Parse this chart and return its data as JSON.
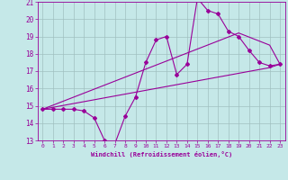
{
  "title": "",
  "xlabel": "Windchill (Refroidissement éolien,°C)",
  "ylabel": "",
  "background_color": "#c5e8e8",
  "grid_color": "#a0c0c0",
  "line_color": "#990099",
  "xlim": [
    -0.5,
    23.5
  ],
  "ylim": [
    13,
    21
  ],
  "yticks": [
    13,
    14,
    15,
    16,
    17,
    18,
    19,
    20,
    21
  ],
  "xticks": [
    0,
    1,
    2,
    3,
    4,
    5,
    6,
    7,
    8,
    9,
    10,
    11,
    12,
    13,
    14,
    15,
    16,
    17,
    18,
    19,
    20,
    21,
    22,
    23
  ],
  "line1_x": [
    0,
    1,
    2,
    3,
    4,
    5,
    6,
    7,
    8,
    9,
    10,
    11,
    12,
    13,
    14,
    15,
    16,
    17,
    18,
    19,
    20,
    21,
    22,
    23
  ],
  "line1_y": [
    14.8,
    14.8,
    14.8,
    14.8,
    14.7,
    14.3,
    13.0,
    12.8,
    14.4,
    15.5,
    17.5,
    18.8,
    19.0,
    16.8,
    17.4,
    21.2,
    20.5,
    20.3,
    19.3,
    19.0,
    18.2,
    17.5,
    17.3,
    17.4
  ],
  "line2_x": [
    0,
    22,
    23
  ],
  "line2_y": [
    14.8,
    17.2,
    17.4
  ],
  "line3_x": [
    0,
    19,
    22,
    23
  ],
  "line3_y": [
    14.8,
    19.2,
    18.5,
    17.4
  ]
}
